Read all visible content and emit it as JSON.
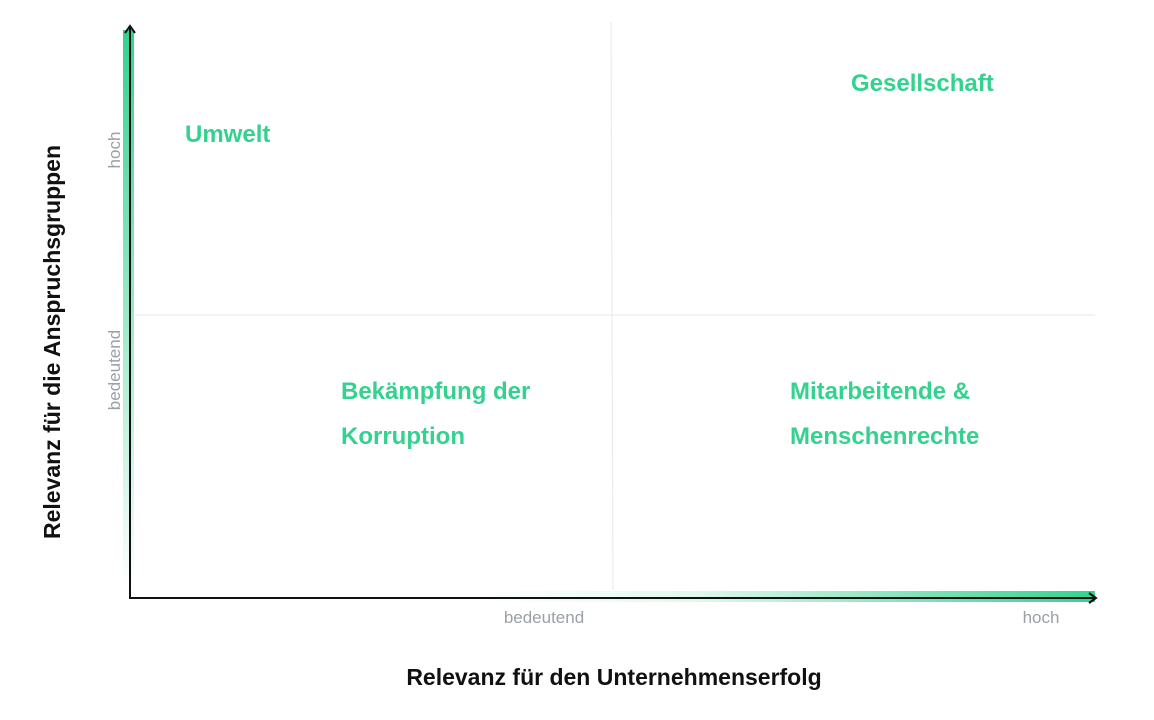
{
  "axes": {
    "x_title": "Relevanz für den Unternehmenserfolg",
    "y_title": "Relevanz für die Anspruchsgruppen",
    "x_labels": [
      "bedeutend",
      "hoch"
    ],
    "y_labels": [
      "bedeutend",
      "hoch"
    ]
  },
  "topics": [
    {
      "lines": [
        "Umwelt"
      ]
    },
    {
      "lines": [
        "Gesellschaft"
      ]
    },
    {
      "lines": [
        "Bekämpfung der",
        "Korruption"
      ]
    },
    {
      "lines": [
        "Mitarbeitende &",
        "Menschenrechte"
      ]
    }
  ]
}
